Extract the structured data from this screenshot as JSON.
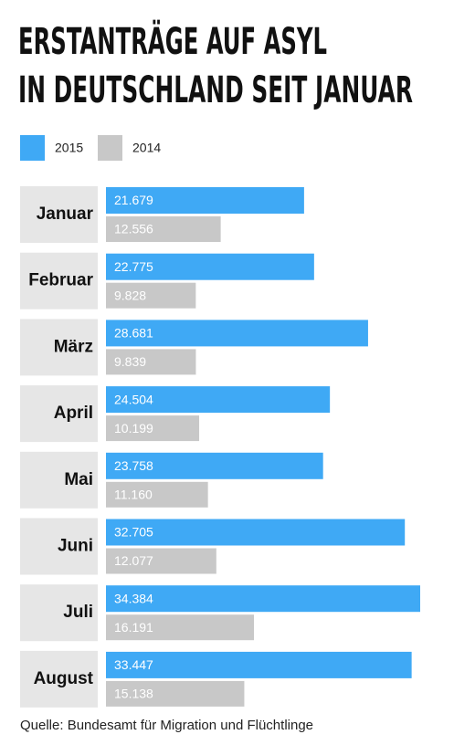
{
  "chart_data": {
    "type": "bar",
    "orientation": "horizontal",
    "title": [
      "ERSTANTRÄGE AUF ASYL",
      "IN DEUTSCHLAND SEIT JANUAR"
    ],
    "categories": [
      "Januar",
      "Februar",
      "März",
      "April",
      "Mai",
      "Juni",
      "Juli",
      "August"
    ],
    "series": [
      {
        "name": "2015",
        "color": "#3fa9f5",
        "values": [
          21679,
          22775,
          28681,
          24504,
          23758,
          32705,
          34384,
          33447
        ],
        "value_labels": [
          "21.679",
          "22.775",
          "28.681",
          "24.504",
          "23.758",
          "32.705",
          "34.384",
          "33.447"
        ]
      },
      {
        "name": "2014",
        "color": "#c8c8c8",
        "values": [
          12556,
          9828,
          9839,
          10199,
          11160,
          12077,
          16191,
          15138
        ],
        "value_labels": [
          "12.556",
          "9.828",
          "9.839",
          "10.199",
          "11.160",
          "12.077",
          "16.191",
          "15.138"
        ]
      }
    ],
    "source": "Quelle: Bundesamt für Migration und Flüchtlinge"
  }
}
